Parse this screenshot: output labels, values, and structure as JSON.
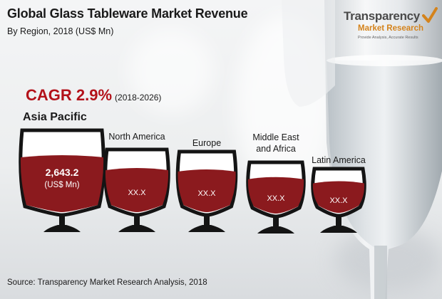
{
  "header": {
    "title": "Global Glass Tableware Market Revenue",
    "subtitle": "By Region, 2018 (US$ Mn)"
  },
  "logo": {
    "line1": "Transparency",
    "line2": "Market Research",
    "tagline": "Provide Analysis, Accurate Results"
  },
  "cagr": {
    "value": "CAGR 2.9%",
    "years": "(2018-2026)"
  },
  "footer": {
    "source": "Source: Transparency Market Research Analysis, 2018"
  },
  "colors": {
    "wine": "#8b1a1e",
    "accent": "#b3121a",
    "logo_orange": "#d4831c"
  },
  "chart_data": {
    "type": "bar",
    "title": "Global Glass Tableware Market Revenue",
    "subtitle": "By Region, 2018 (US$ Mn)",
    "categories": [
      "Asia Pacific",
      "North America",
      "Europe",
      "Middle East and Africa",
      "Latin America"
    ],
    "values": [
      2643.2,
      null,
      null,
      null,
      null
    ],
    "value_labels": [
      "2,643.2",
      "XX.X",
      "XX.X",
      "XX.X",
      "XX.X"
    ],
    "value_unit": "(US$ Mn)",
    "annotation": "CAGR 2.9% (2018-2026)"
  }
}
